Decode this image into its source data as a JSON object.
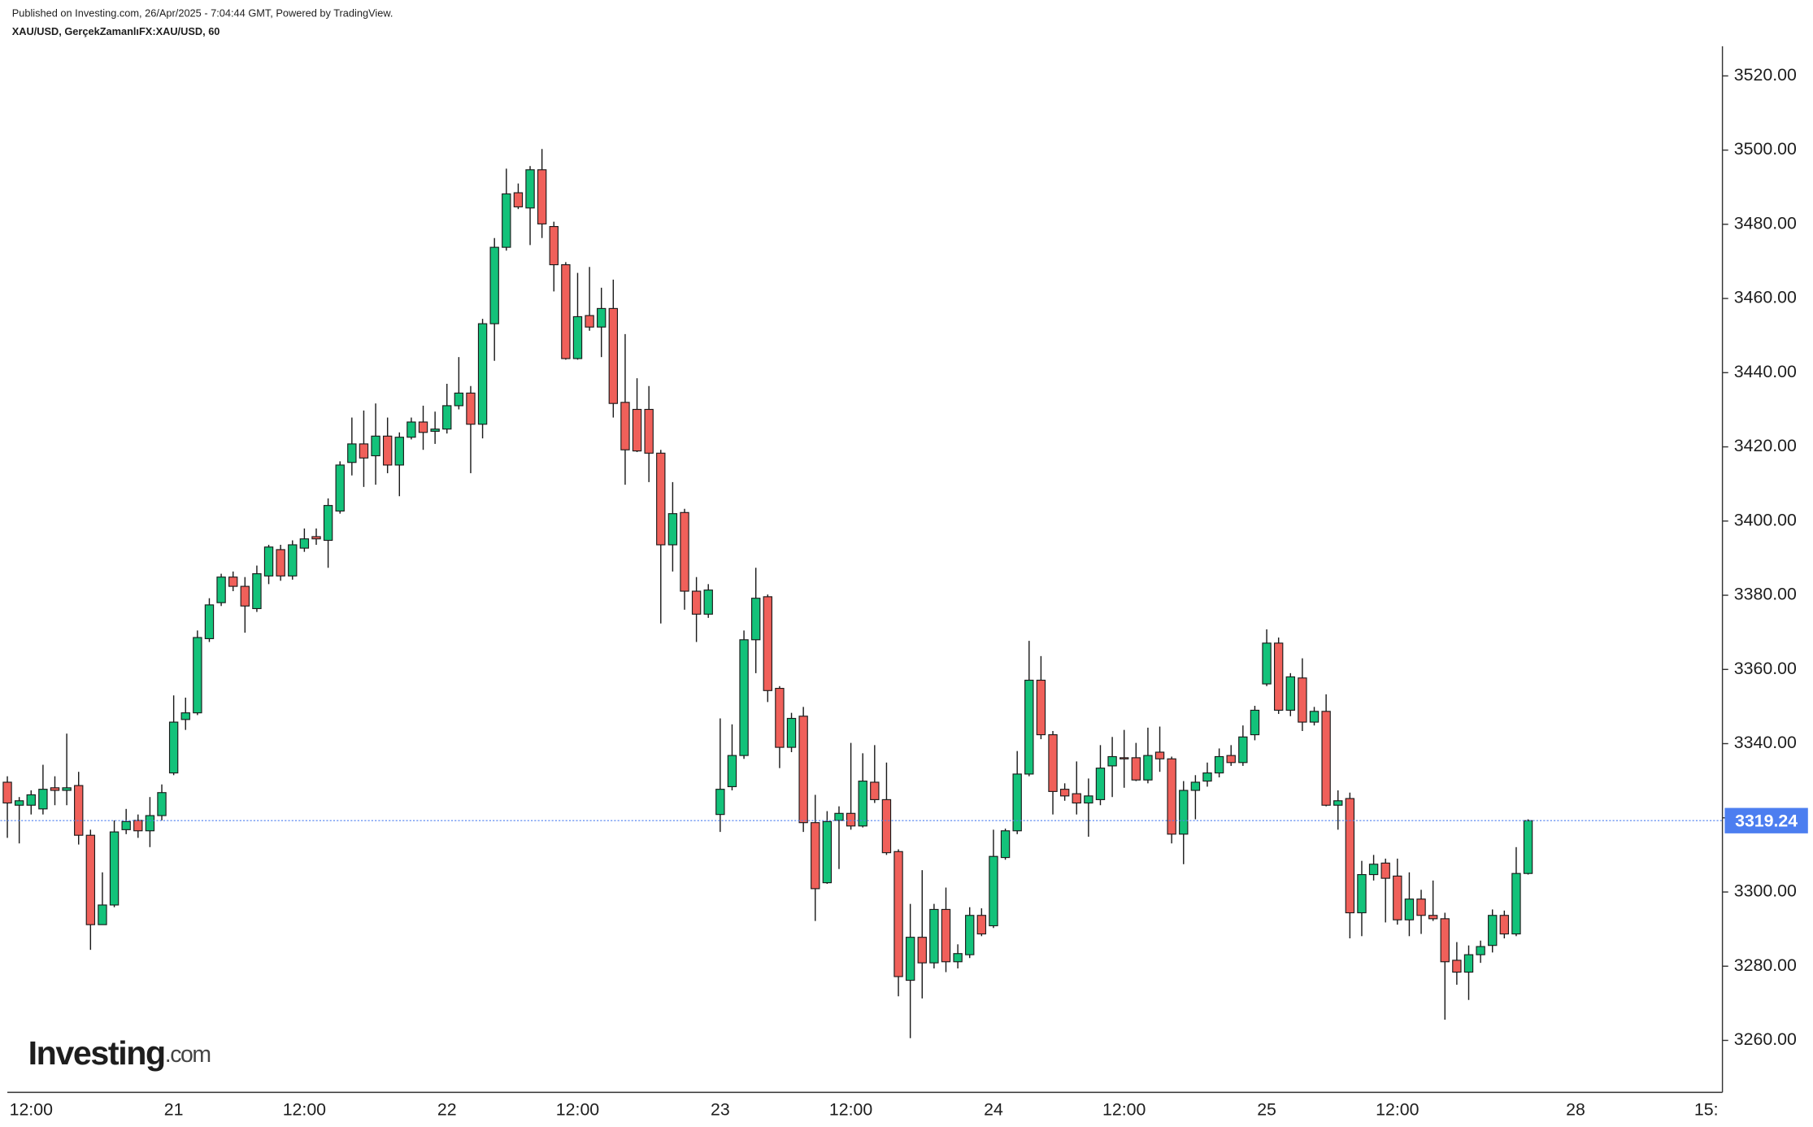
{
  "header": {
    "published": "Published on Investing.com, 26/Apr/2025 - 7:04:44 GMT, Powered by TradingView.",
    "symbol": "XAU/USD, GerçekZamanlıFX:XAU/USD, 60",
    "logo": "Investing",
    "logo_domain": ".com"
  },
  "chart_data": {
    "type": "candlestick",
    "up_color": "#13c27a",
    "down_color": "#f0605a",
    "last_price_color": "#4c7ef0",
    "grid": false,
    "categories": [
      null,
      null,
      "12:00",
      null,
      null,
      null,
      null,
      null,
      null,
      null,
      null,
      null,
      null,
      null,
      "21",
      null,
      null,
      null,
      null,
      null,
      null,
      null,
      null,
      null,
      null,
      "12:00",
      null,
      null,
      null,
      null,
      null,
      null,
      null,
      null,
      null,
      null,
      null,
      "22",
      null,
      null,
      null,
      null,
      null,
      null,
      null,
      null,
      null,
      null,
      "12:00",
      null,
      null,
      null,
      null,
      null,
      null,
      null,
      null,
      null,
      null,
      null,
      "23",
      null,
      null,
      null,
      null,
      null,
      null,
      null,
      null,
      null,
      null,
      "12:00",
      null,
      null,
      null,
      null,
      null,
      null,
      null,
      null,
      null,
      null,
      null,
      "24",
      null,
      null,
      null,
      null,
      null,
      null,
      null,
      null,
      null,
      null,
      "12:00",
      null,
      null,
      null,
      null,
      null,
      null,
      null,
      null,
      null,
      null,
      null,
      "25",
      null,
      null,
      null,
      null,
      null,
      null,
      null,
      null,
      null,
      null,
      "12:00",
      null,
      null,
      null,
      null,
      null,
      null,
      null,
      null,
      null,
      null,
      null,
      null,
      null,
      null,
      "28",
      null,
      null,
      null,
      null,
      null,
      null,
      null,
      null,
      null,
      null,
      "15:"
    ],
    "open": [
      3329.6,
      3323.4,
      3323.4,
      3322.4,
      3328.1,
      3327.4,
      3328.7,
      3315.3,
      3291.2,
      3296.5,
      3316.8,
      3319.3,
      3316.5,
      3320.6,
      3332.1,
      3346.5,
      3348.3,
      3368.3,
      3378.0,
      3384.9,
      3382.4,
      3376.4,
      3385.2,
      3392.3,
      3385.2,
      3392.7,
      3395.8,
      3394.8,
      3402.7,
      3415.8,
      3420.8,
      3417.6,
      3422.9,
      3415.1,
      3422.6,
      3426.7,
      3424.2,
      3424.8,
      3431.1,
      3434.5,
      3426.1,
      3453.2,
      3473.8,
      3488.5,
      3484.4,
      3494.7,
      3479.4,
      3469.1,
      3443.8,
      3455.4,
      3452.3,
      3457.3,
      3432.0,
      3430.1,
      3430.1,
      3418.3,
      3393.6,
      3402.3,
      3381.1,
      3374.9,
      3320.9,
      3328.4,
      3336.8,
      3368.0,
      3379.6,
      3354.9,
      3339.0,
      3347.4,
      3318.7,
      3302.5,
      3319.3,
      3321.2,
      3317.8,
      3329.6,
      3324.9,
      3310.9,
      3276.2,
      3287.8,
      3280.9,
      3295.3,
      3281.2,
      3283.1,
      3293.7,
      3290.9,
      3309.3,
      3316.5,
      3331.8,
      3357.1,
      3342.4,
      3327.7,
      3326.5,
      3324.0,
      3324.9,
      3334.0,
      3336.2,
      3336.2,
      3330.2,
      3337.7,
      3335.9,
      3315.6,
      3327.4,
      3329.9,
      3332.1,
      3336.8,
      3334.9,
      3342.4,
      3356.1,
      3367.1,
      3349.0,
      3357.7,
      3345.8,
      3348.7,
      3323.4,
      3325.2,
      3294.4,
      3304.7,
      3307.8,
      3304.3,
      3292.5,
      3298.1,
      3293.7,
      3292.8,
      3281.6,
      3278.4,
      3283.1,
      3285.6,
      3293.7,
      3288.7,
      3305.0,
      null,
      null,
      null,
      null,
      null,
      null,
      null,
      null,
      null,
      null,
      null,
      null,
      null,
      null,
      null
    ],
    "high": [
      3331.2,
      3325.6,
      3327.4,
      3334.3,
      3331.2,
      3342.7,
      3332.4,
      3316.8,
      3305.3,
      3319.3,
      3322.4,
      3320.9,
      3325.6,
      3329.0,
      3353.0,
      3352.4,
      3370.5,
      3379.2,
      3385.8,
      3386.4,
      3384.9,
      3388.0,
      3393.6,
      3393.6,
      3394.8,
      3398.0,
      3398.0,
      3406.1,
      3416.1,
      3427.9,
      3429.8,
      3431.7,
      3427.9,
      3423.9,
      3427.9,
      3431.1,
      3429.5,
      3437.0,
      3444.2,
      3436.4,
      3454.5,
      3476.3,
      3495.0,
      3491.0,
      3495.7,
      3500.3,
      3480.7,
      3469.8,
      3466.9,
      3468.5,
      3462.9,
      3465.1,
      3450.4,
      3438.5,
      3436.4,
      3419.2,
      3410.5,
      3403.3,
      3384.9,
      3383.0,
      3346.8,
      3345.2,
      3370.5,
      3387.4,
      3380.2,
      3355.5,
      3348.3,
      3349.9,
      3326.2,
      3321.8,
      3323.1,
      3340.2,
      3337.4,
      3339.6,
      3334.9,
      3311.5,
      3296.8,
      3305.9,
      3296.8,
      3301.2,
      3285.9,
      3295.9,
      3295.6,
      3316.8,
      3317.1,
      3338.0,
      3367.7,
      3363.6,
      3343.4,
      3329.3,
      3335.2,
      3330.6,
      3339.6,
      3341.8,
      3343.7,
      3340.2,
      3344.3,
      3344.6,
      3336.5,
      3329.9,
      3331.5,
      3334.9,
      3338.7,
      3339.6,
      3344.9,
      3350.2,
      3370.8,
      3368.6,
      3359.0,
      3363.0,
      3349.9,
      3353.3,
      3327.4,
      3326.8,
      3308.4,
      3310.0,
      3309.0,
      3309.0,
      3305.3,
      3300.6,
      3303.1,
      3294.4,
      3286.5,
      3285.6,
      3286.9,
      3295.3,
      3295.0,
      3312.1,
      3319.6,
      null,
      null,
      null,
      null,
      null,
      null,
      null,
      null,
      null,
      null,
      null,
      null,
      null,
      null,
      null
    ],
    "low": [
      3314.6,
      3313.1,
      3320.9,
      3320.9,
      3323.4,
      3323.4,
      3312.8,
      3284.4,
      3291.2,
      3295.9,
      3315.6,
      3314.6,
      3312.1,
      3319.3,
      3331.5,
      3343.7,
      3347.7,
      3367.4,
      3377.1,
      3381.1,
      3369.9,
      3375.5,
      3383.0,
      3383.9,
      3384.2,
      3391.7,
      3393.6,
      3387.4,
      3402.0,
      3412.3,
      3409.2,
      3409.8,
      3412.9,
      3406.7,
      3422.0,
      3419.2,
      3420.8,
      3423.6,
      3430.1,
      3412.9,
      3422.3,
      3443.2,
      3472.9,
      3484.1,
      3474.4,
      3476.3,
      3461.9,
      3443.5,
      3443.5,
      3451.3,
      3444.2,
      3427.9,
      3409.8,
      3418.6,
      3410.5,
      3372.4,
      3386.4,
      3376.1,
      3367.4,
      3373.9,
      3316.2,
      3327.4,
      3335.9,
      3359.0,
      3351.2,
      3333.4,
      3337.7,
      3316.2,
      3292.2,
      3302.2,
      3306.2,
      3316.8,
      3317.4,
      3324.0,
      3310.0,
      3271.9,
      3260.6,
      3271.3,
      3279.4,
      3278.4,
      3279.4,
      3282.2,
      3288.1,
      3290.3,
      3308.7,
      3315.6,
      3331.2,
      3341.2,
      3320.9,
      3324.6,
      3320.9,
      3314.9,
      3323.4,
      3325.6,
      3328.1,
      3329.9,
      3329.3,
      3332.4,
      3313.1,
      3307.5,
      3319.6,
      3328.4,
      3330.9,
      3334.0,
      3334.0,
      3340.9,
      3355.5,
      3348.0,
      3347.4,
      3343.4,
      3344.9,
      3323.1,
      3316.8,
      3287.5,
      3288.1,
      3303.1,
      3291.8,
      3291.2,
      3288.1,
      3288.7,
      3292.2,
      3265.6,
      3275.0,
      3270.9,
      3280.9,
      3283.7,
      3287.5,
      3288.1,
      3304.7,
      null,
      null,
      null,
      null,
      null,
      null,
      null,
      null,
      null,
      null,
      null,
      null,
      null,
      null,
      null
    ],
    "close": [
      3324.0,
      3324.6,
      3326.2,
      3327.7,
      3327.4,
      3328.1,
      3315.3,
      3291.2,
      3296.5,
      3316.2,
      3319.0,
      3316.5,
      3320.6,
      3326.8,
      3345.8,
      3348.3,
      3368.6,
      3377.4,
      3384.9,
      3382.4,
      3377.1,
      3385.8,
      3393.0,
      3385.2,
      3393.6,
      3395.2,
      3395.2,
      3404.2,
      3415.1,
      3420.8,
      3417.0,
      3422.9,
      3415.1,
      3422.6,
      3426.7,
      3423.9,
      3424.8,
      3431.1,
      3434.5,
      3426.1,
      3453.2,
      3473.8,
      3488.2,
      3484.7,
      3494.7,
      3480.1,
      3469.1,
      3443.8,
      3455.1,
      3452.3,
      3457.3,
      3431.7,
      3419.2,
      3418.9,
      3418.3,
      3393.6,
      3402.0,
      3381.1,
      3374.9,
      3381.4,
      3327.7,
      3336.8,
      3368.0,
      3379.2,
      3354.3,
      3339.0,
      3346.8,
      3318.7,
      3300.9,
      3319.0,
      3321.2,
      3317.8,
      3329.9,
      3324.9,
      3310.6,
      3277.2,
      3287.8,
      3280.9,
      3295.3,
      3281.2,
      3283.4,
      3293.7,
      3288.7,
      3309.6,
      3316.5,
      3331.8,
      3357.1,
      3342.4,
      3327.1,
      3325.9,
      3324.0,
      3325.9,
      3333.4,
      3336.5,
      3335.9,
      3330.2,
      3336.8,
      3335.9,
      3315.6,
      3327.4,
      3329.6,
      3332.1,
      3336.5,
      3334.9,
      3341.8,
      3349.0,
      3367.1,
      3349.0,
      3358.0,
      3345.8,
      3348.7,
      3323.4,
      3324.6,
      3294.4,
      3304.7,
      3307.5,
      3303.7,
      3292.5,
      3298.1,
      3293.7,
      3292.8,
      3281.2,
      3278.4,
      3283.1,
      3285.3,
      3293.7,
      3288.7,
      3305.0,
      3319.24,
      null,
      null,
      null,
      null,
      null,
      null,
      null,
      null,
      null,
      null,
      null,
      null,
      null,
      null,
      null
    ],
    "ylim": [
      3246,
      3528
    ],
    "yticks": [
      {
        "value": 3260,
        "label": "3260.00"
      },
      {
        "value": 3280,
        "label": "3280.00"
      },
      {
        "value": 3300,
        "label": "3300.00"
      },
      {
        "value": 3320,
        "label": "3320.00"
      },
      {
        "value": 3340,
        "label": "3340.00"
      },
      {
        "value": 3360,
        "label": "3360.00"
      },
      {
        "value": 3380,
        "label": "3380.00"
      },
      {
        "value": 3400,
        "label": "3400.00"
      },
      {
        "value": 3420,
        "label": "3420.00"
      },
      {
        "value": 3440,
        "label": "3440.00"
      },
      {
        "value": 3460,
        "label": "3460.00"
      },
      {
        "value": 3480,
        "label": "3480.00"
      },
      {
        "value": 3500,
        "label": "3500.00"
      },
      {
        "value": 3520,
        "label": "3520.00"
      }
    ]
  }
}
